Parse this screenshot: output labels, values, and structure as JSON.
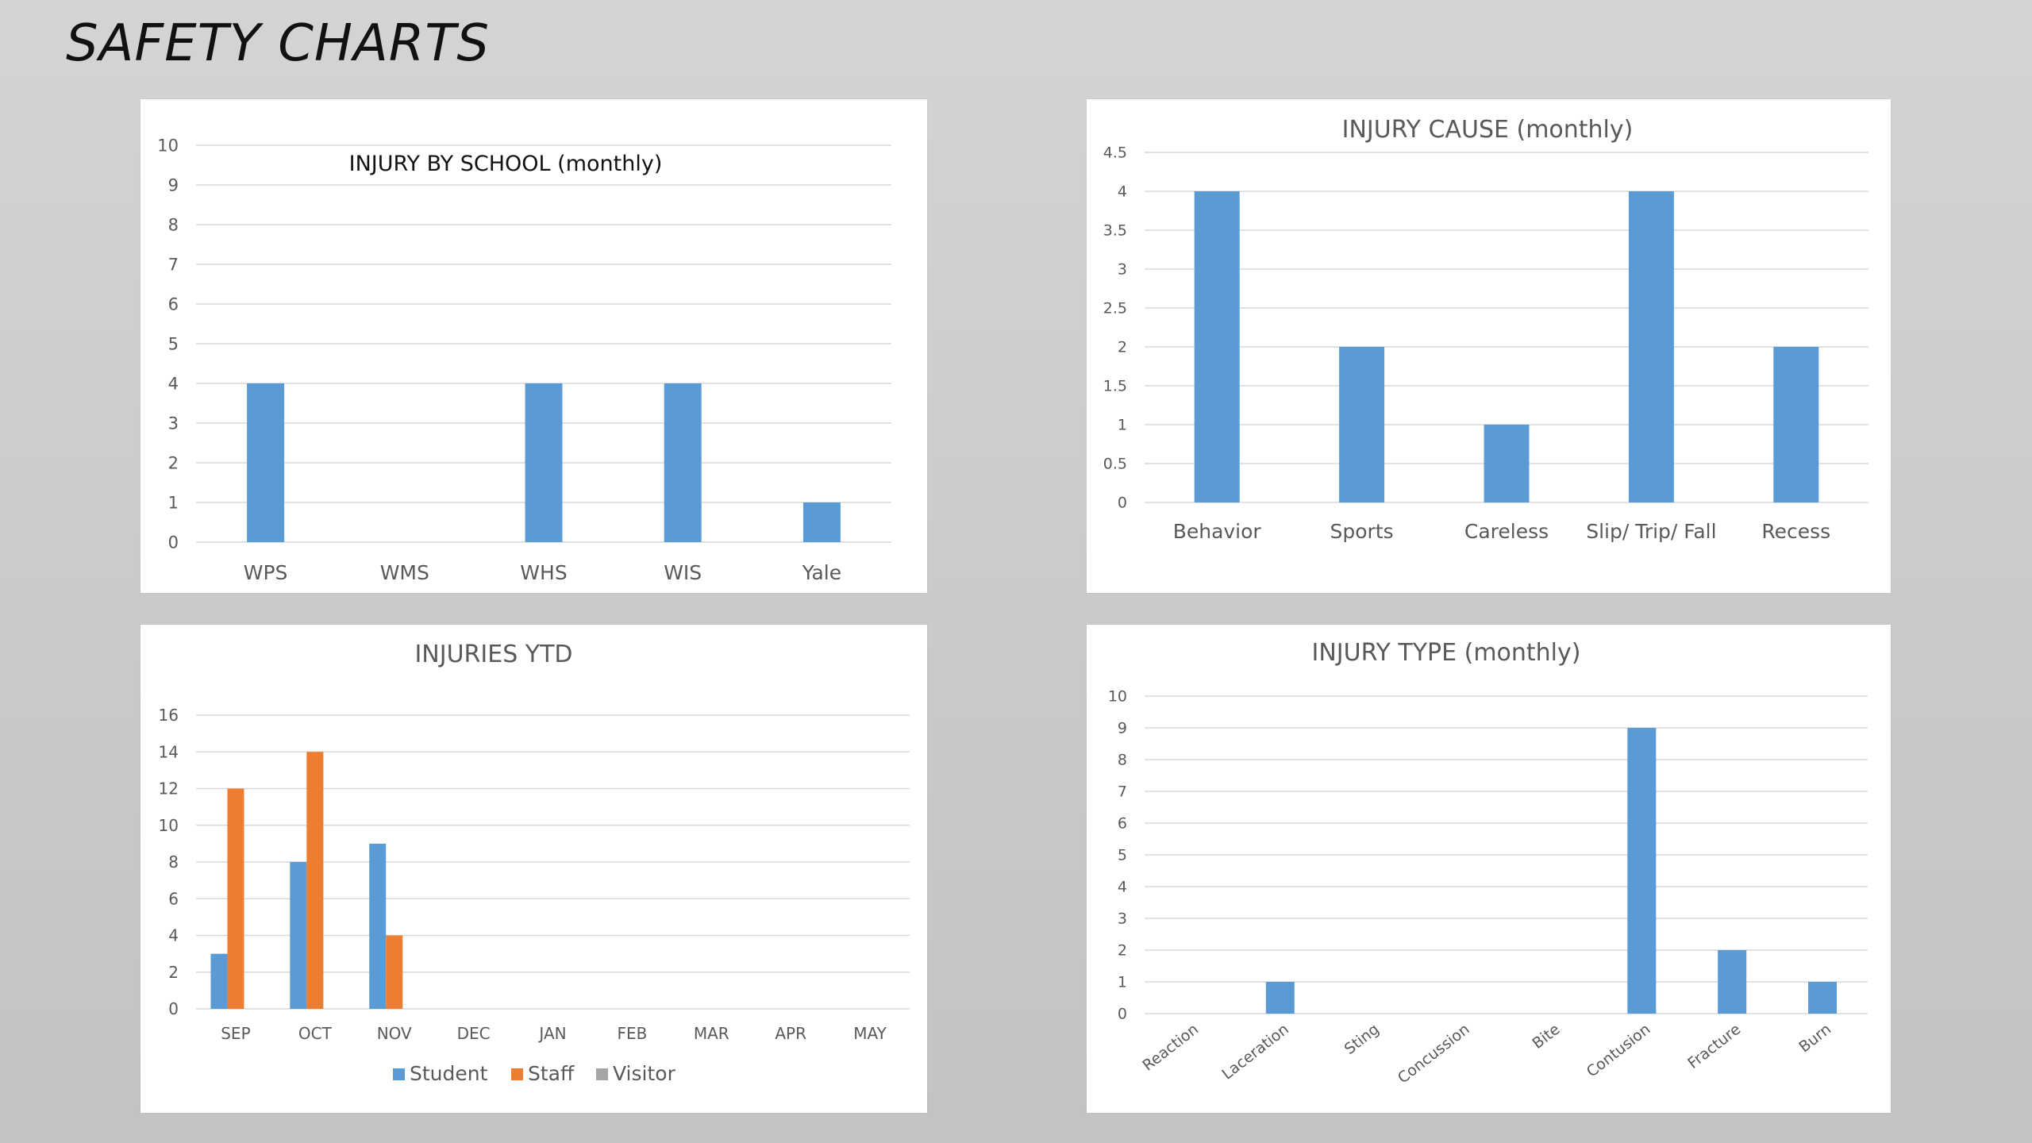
{
  "page": {
    "title": "SAFETY CHARTS"
  },
  "colors": {
    "student": "#5b9bd5",
    "staff": "#ed7d31",
    "visitor": "#a5a5a5",
    "grid": "#d9d9d9",
    "text": "#595959"
  },
  "chart_data": [
    {
      "id": "school",
      "type": "bar",
      "title": "INJURY BY SCHOOL (monthly)",
      "categories": [
        "WPS",
        "WMS",
        "WHS",
        "WIS",
        "Yale"
      ],
      "values": [
        4,
        0,
        4,
        4,
        1
      ],
      "ylim": [
        0,
        10
      ],
      "yticks": [
        "0",
        "1",
        "2",
        "3",
        "4",
        "5",
        "6",
        "7",
        "8",
        "9",
        "10"
      ],
      "grid": true
    },
    {
      "id": "cause",
      "type": "bar",
      "title": "INJURY CAUSE (monthly)",
      "categories": [
        "Behavior",
        "Sports",
        "Careless",
        "Slip/ Trip/ Fall",
        "Recess"
      ],
      "values": [
        4,
        2,
        1,
        4,
        2
      ],
      "ylim": [
        0,
        4.5
      ],
      "yticks": [
        "0",
        "0.5",
        "1",
        "1.5",
        "2",
        "2.5",
        "3",
        "3.5",
        "4",
        "4.5"
      ],
      "grid": true
    },
    {
      "id": "ytd",
      "type": "bar",
      "title": "INJURIES  YTD",
      "categories": [
        "SEP",
        "OCT",
        "NOV",
        "DEC",
        "JAN",
        "FEB",
        "MAR",
        "APR",
        "MAY"
      ],
      "series": [
        {
          "name": "Student",
          "values": [
            3,
            8,
            9,
            0,
            0,
            0,
            0,
            0,
            0
          ]
        },
        {
          "name": "Staff",
          "values": [
            12,
            14,
            4,
            0,
            0,
            0,
            0,
            0,
            0
          ]
        },
        {
          "name": "Visitor",
          "values": [
            0,
            0,
            0,
            0,
            0,
            0,
            0,
            0,
            0
          ]
        }
      ],
      "ylim": [
        0,
        16
      ],
      "yticks": [
        "0",
        "2",
        "4",
        "6",
        "8",
        "10",
        "12",
        "14",
        "16"
      ],
      "legend": "bottom",
      "grid": true
    },
    {
      "id": "type",
      "type": "bar",
      "title": "INJURY TYPE (monthly)",
      "categories": [
        "Reaction",
        "Laceration",
        "Sting",
        "Concussion",
        "Bite",
        "Contusion",
        "Fracture",
        "Burn"
      ],
      "values": [
        0,
        1,
        0,
        0,
        0,
        9,
        2,
        1
      ],
      "ylim": [
        0,
        10
      ],
      "yticks": [
        "0",
        "1",
        "2",
        "3",
        "4",
        "5",
        "6",
        "7",
        "8",
        "9",
        "10"
      ],
      "xlabel_rotation": "diagonal",
      "grid": true
    }
  ]
}
